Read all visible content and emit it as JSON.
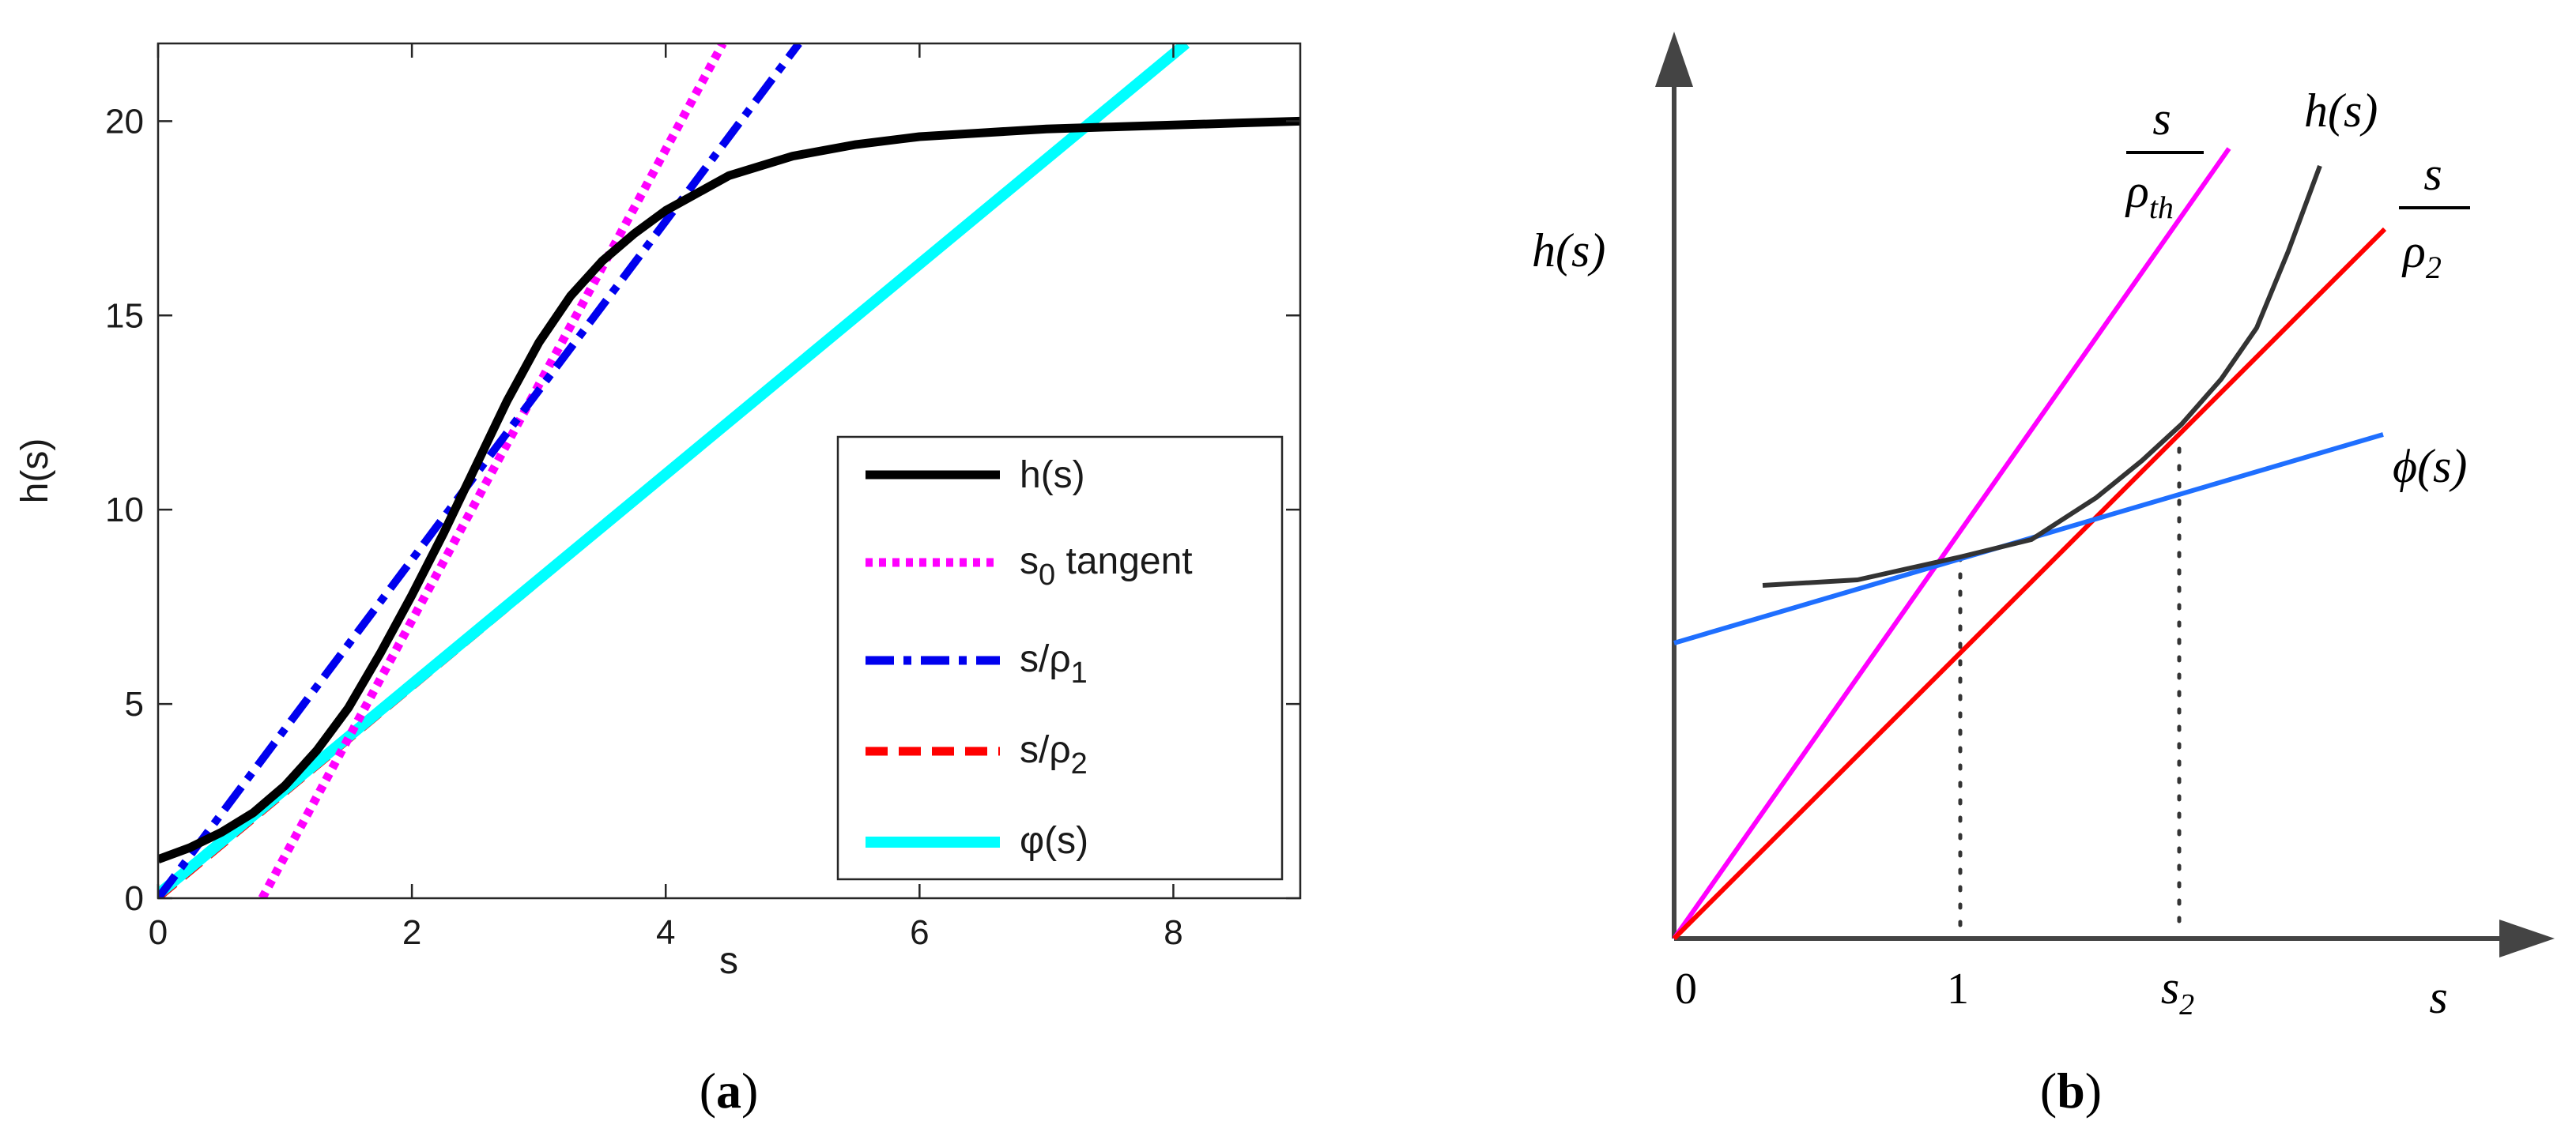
{
  "chart_data": [
    {
      "panel": "(a)",
      "type": "line",
      "title": "",
      "xlabel": "s",
      "ylabel": "h(s)",
      "xlim": [
        0,
        9
      ],
      "ylim": [
        0,
        22
      ],
      "xticks": [
        0,
        2,
        4,
        6,
        8
      ],
      "yticks": [
        0,
        5,
        10,
        15,
        20
      ],
      "grid": false,
      "legend_position": "bottom-right",
      "series": [
        {
          "name": "h(s)",
          "color": "#000000",
          "style": "solid",
          "x": [
            0,
            0.25,
            0.5,
            0.75,
            1.0,
            1.25,
            1.5,
            1.75,
            2.0,
            2.25,
            2.5,
            2.75,
            3.0,
            3.25,
            3.5,
            3.75,
            4.0,
            4.5,
            5.0,
            5.5,
            6.0,
            6.5,
            7.0,
            7.5,
            8.0,
            8.5,
            9.0
          ],
          "y": [
            1.0,
            1.3,
            1.7,
            2.2,
            2.9,
            3.8,
            4.9,
            6.3,
            7.8,
            9.4,
            11.1,
            12.8,
            14.3,
            15.5,
            16.4,
            17.1,
            17.7,
            18.6,
            19.1,
            19.4,
            19.6,
            19.7,
            19.8,
            19.85,
            19.9,
            19.95,
            20.0
          ]
        },
        {
          "name": "s0 tangent",
          "color": "#ff00ff",
          "style": "dotted",
          "x": [
            0.82,
            4.45
          ],
          "y": [
            0,
            22
          ]
        },
        {
          "name": "s/ρ1",
          "color": "#0000ee",
          "style": "dashdot",
          "x": [
            0.0,
            5.05
          ],
          "y": [
            0.0,
            22
          ]
        },
        {
          "name": "s/ρ2",
          "color": "#ff0000",
          "style": "dashed",
          "x": [
            0.0,
            8.1
          ],
          "y": [
            0.0,
            22
          ]
        },
        {
          "name": "φ(s)",
          "color": "#00ffff",
          "style": "solid",
          "x": [
            0.0,
            8.1
          ],
          "y": [
            0.1,
            22
          ]
        }
      ],
      "legend": [
        {
          "label": "h(s)",
          "color": "#000000",
          "style": "solid"
        },
        {
          "label_main": "s",
          "label_sub": "0",
          "label_tail": " tangent",
          "color": "#ff00ff",
          "style": "dotted"
        },
        {
          "label_main": "s/ρ",
          "label_sub": "1",
          "label_tail": "",
          "color": "#0000ee",
          "style": "dashdot"
        },
        {
          "label_main": "s/ρ",
          "label_sub": "2",
          "label_tail": "",
          "color": "#ff0000",
          "style": "dashed"
        },
        {
          "label": "φ(s)",
          "color": "#00ffff",
          "style": "solid"
        }
      ]
    },
    {
      "panel": "(b)",
      "type": "line",
      "title": "",
      "xlabel": "s",
      "ylabel": "h(s)",
      "x_tick_labels": [
        "0",
        "1",
        "s2"
      ],
      "grid": false,
      "series": [
        {
          "name": "s/ρth",
          "color": "#ff00ff",
          "style": "solid"
        },
        {
          "name": "s/ρ2",
          "color": "#ff0000",
          "style": "solid"
        },
        {
          "name": "h(s)",
          "color": "#333333",
          "style": "solid"
        },
        {
          "name": "φ(s)",
          "color": "#1f6fff",
          "style": "solid"
        }
      ],
      "guides": [
        {
          "at": "1",
          "style": "dotted"
        },
        {
          "at": "s2",
          "style": "dotted"
        }
      ]
    }
  ],
  "panel_a": {
    "panel_label": "a",
    "xlabel": "s",
    "ylabel": "h(s)",
    "xtick_labels": [
      "0",
      "2",
      "4",
      "6",
      "8"
    ],
    "ytick_labels": [
      "0",
      "5",
      "10",
      "15",
      "20"
    ],
    "legend": {
      "h": "h(s)",
      "s0_main": "s",
      "s0_sub": "0",
      "s0_tail": " tangent",
      "rho1_main": "s/ρ",
      "rho1_sub": "1",
      "rho2_main": "s/ρ",
      "rho2_sub": "2",
      "phi": "φ(s)"
    }
  },
  "panel_b": {
    "panel_label": "b",
    "ylabel": "h(s)",
    "xlabel": "s",
    "tick_zero": "0",
    "tick_one": "1",
    "tick_s2_main": "s",
    "tick_s2_sub": "2",
    "label_h": "h(s)",
    "label_phi": "ϕ(s)",
    "frac_th_num": "s",
    "frac_th_den_main": "ρ",
    "frac_th_den_sub": "th",
    "frac_2_num": "s",
    "frac_2_den_main": "ρ",
    "frac_2_den_sub": "2"
  },
  "colors": {
    "black": "#000000",
    "magenta": "#ff00ff",
    "blue": "#0000ee",
    "red": "#ff0000",
    "cyan": "#00ffff",
    "phi_blue_b": "#1f6fff",
    "h_gray_b": "#333333"
  }
}
